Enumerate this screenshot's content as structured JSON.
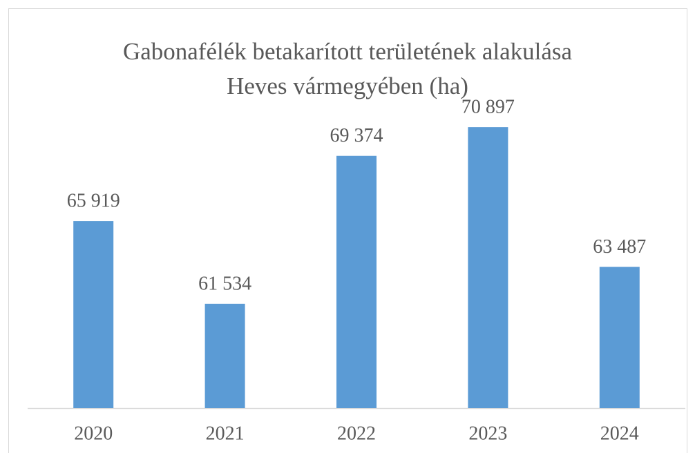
{
  "chart_data": {
    "type": "bar",
    "title": [
      "Gabonafélék betakarított területének alakulása",
      "Heves vármegyében (ha)"
    ],
    "categories": [
      "2020",
      "2021",
      "2022",
      "2023",
      "2024"
    ],
    "values": [
      65919,
      61534,
      69374,
      70897,
      63487
    ],
    "value_labels": [
      "65 919",
      "61 534",
      "69 374",
      "70 897",
      "63 487"
    ],
    "color": "#5b9bd5",
    "ylim": [
      56000,
      72000
    ]
  }
}
